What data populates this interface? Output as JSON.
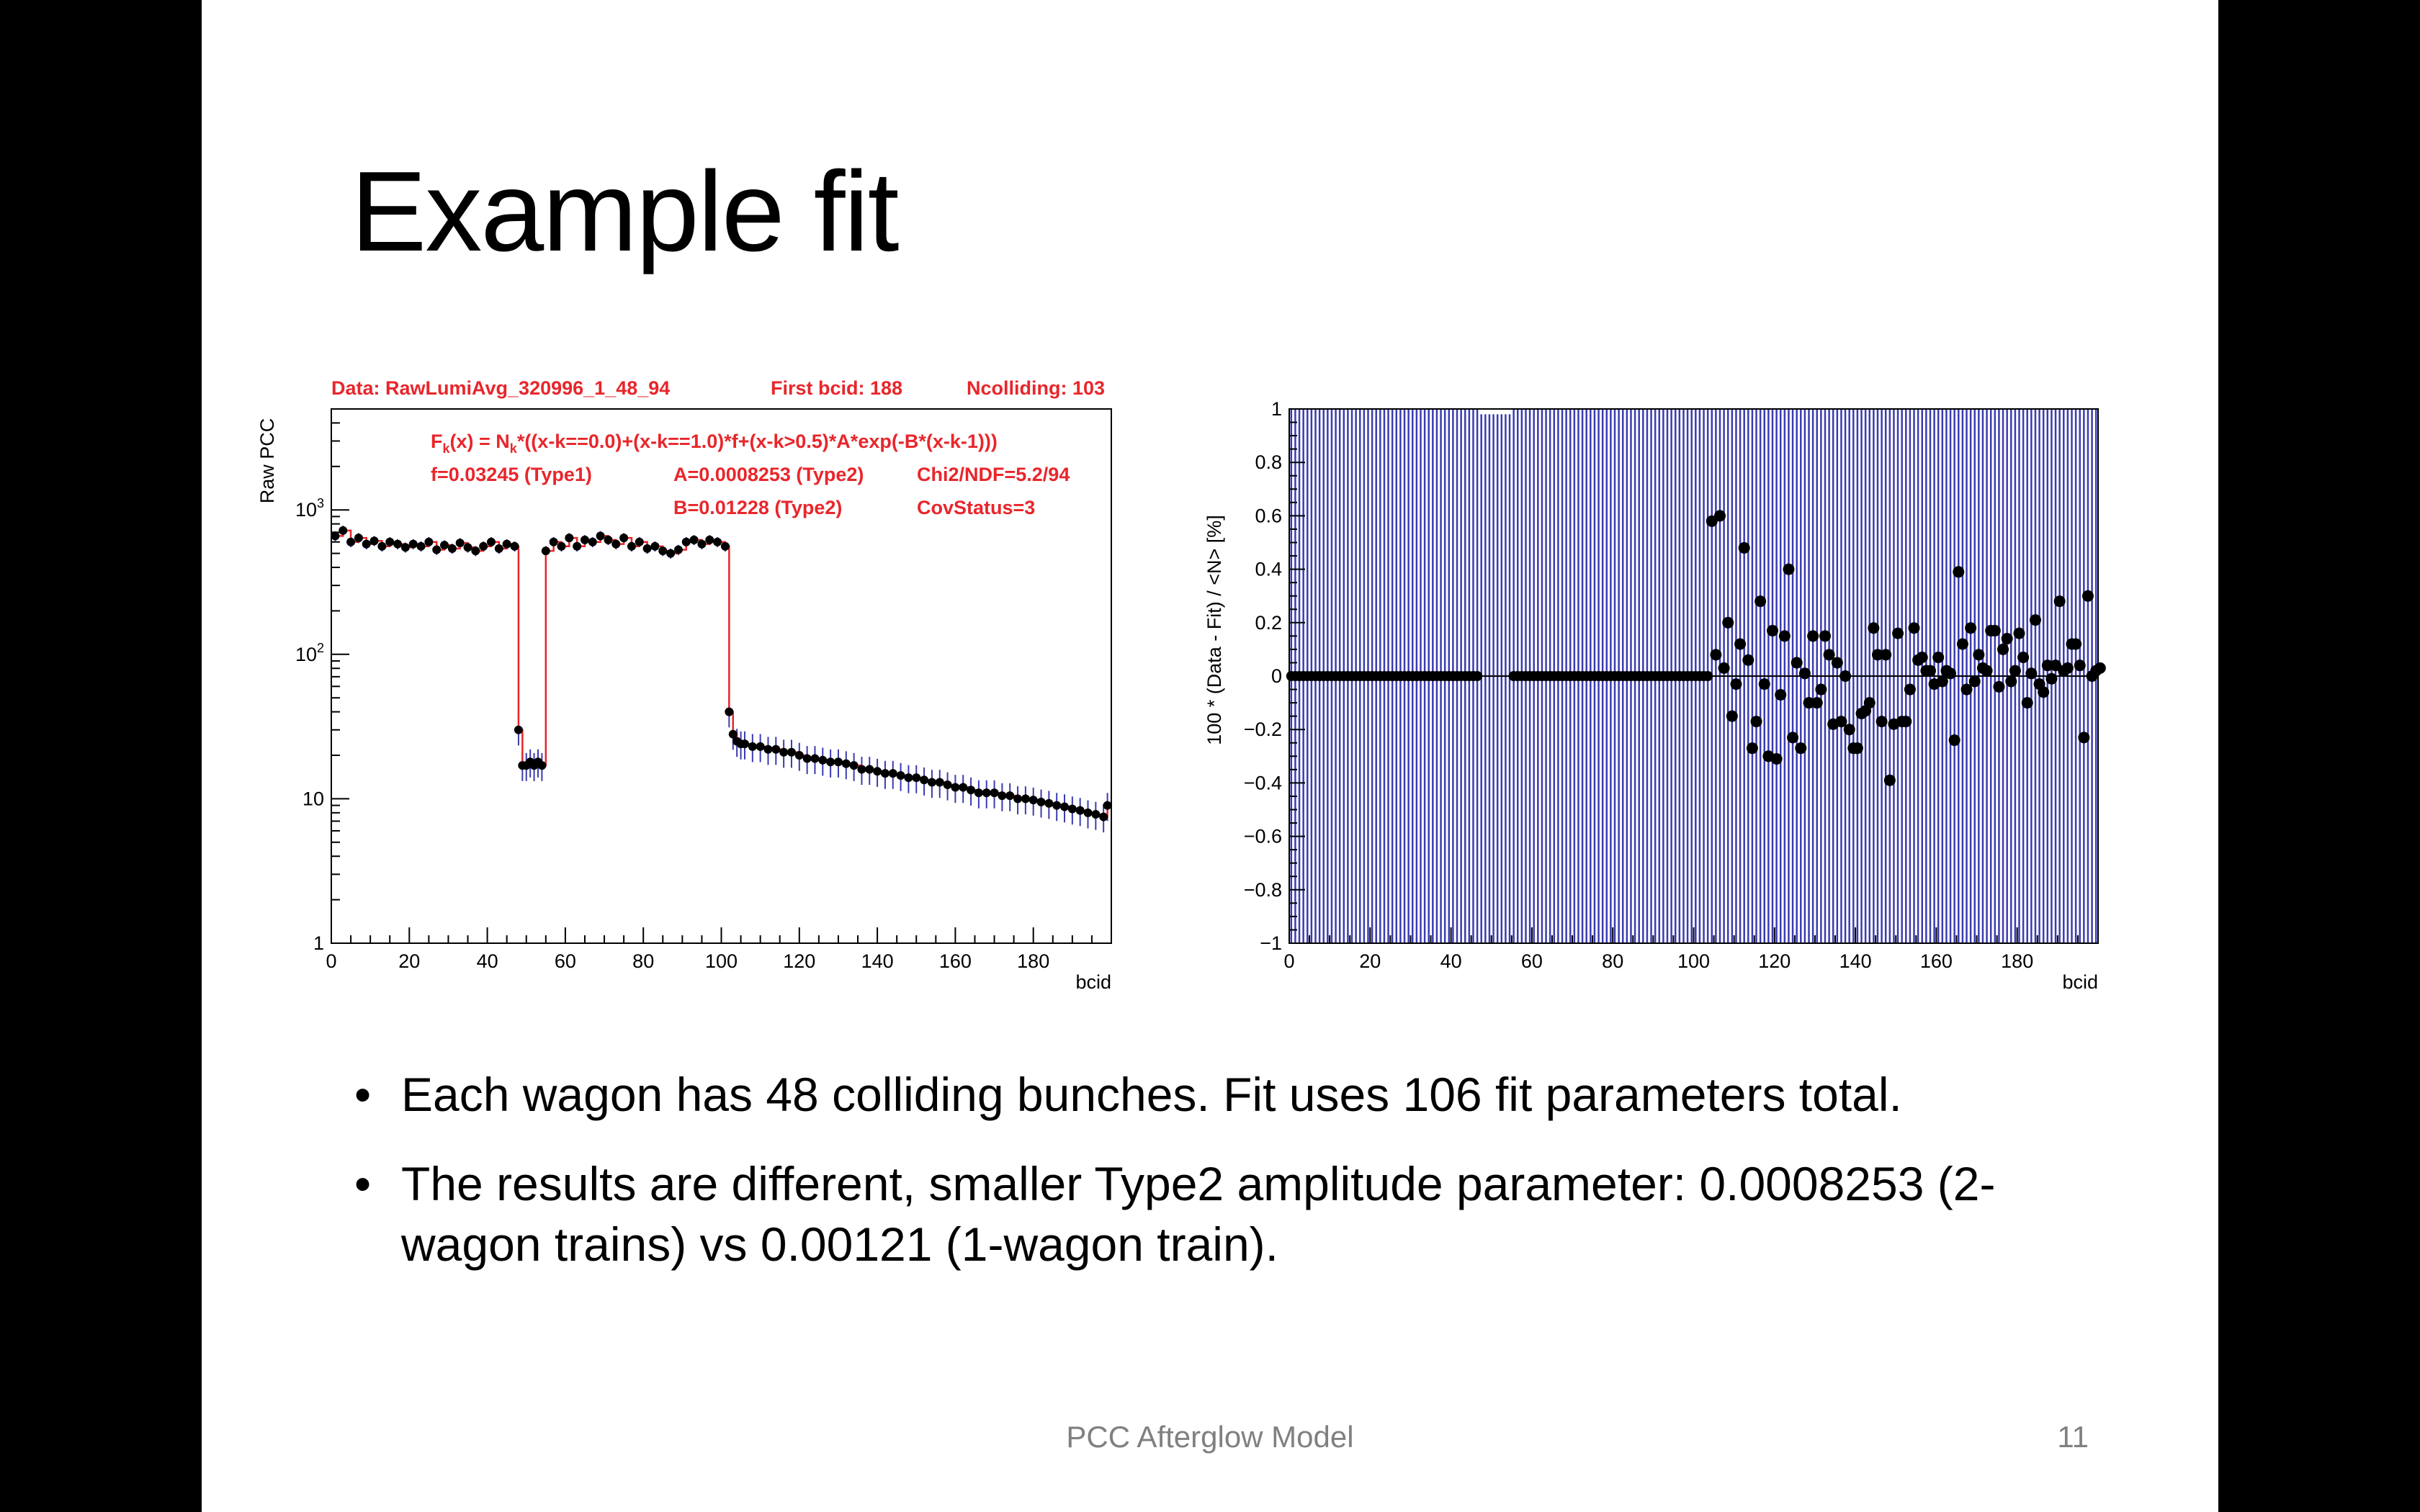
{
  "slide": {
    "title": "Example fit",
    "bullets": [
      "Each wagon has 48 colliding bunches. Fit uses 106 fit parameters total.",
      "The results are different, smaller Type2 amplitude parameter: 0.0008253 (2-wagon trains) vs  0.00121 (1-wagon train)."
    ],
    "footer": "PCC Afterglow Model",
    "page_number": "11"
  },
  "chart_data": [
    {
      "type": "scatter",
      "ylabel": "Raw PCC",
      "xlabel": "bcid",
      "xlim": [
        0,
        200
      ],
      "ylim": [
        1,
        5000
      ],
      "yscale": "log",
      "x_ticks": [
        "0",
        "20",
        "40",
        "60",
        "80",
        "100",
        "120",
        "140",
        "160",
        "180"
      ],
      "y_ticks": [
        "1",
        "10",
        "10^2",
        "10^3"
      ],
      "header": {
        "data": "Data: RawLumiAvg_320996_1_48_94",
        "first_bcid": "First bcid: 188",
        "ncolliding": "Ncolliding: 103"
      },
      "formula": {
        "lead": "F",
        "lead_sub": "k",
        "mid": "(x) = N",
        "mid_sub": "k",
        "tail": "*((x-k==0.0)+(x-k==1.0)*f+(x-k>0.5)*A*exp(-B*(x-k-1)))"
      },
      "params": {
        "f": "f=0.03245 (Type1)",
        "A": "A=0.0008253 (Type2)",
        "chi2": "Chi2/NDF=5.2/94",
        "B": "B=0.01228 (Type2)",
        "cov": "CovStatus=3"
      },
      "colors": {
        "data": "#000000",
        "fit": "#e8262b",
        "errors": "#3b3bb0"
      },
      "series": [
        {
          "x": [
            1,
            3,
            5,
            7,
            9,
            11,
            13,
            15,
            17,
            19,
            21,
            23,
            25,
            27,
            29,
            31,
            33,
            35,
            37,
            39,
            41,
            43,
            45,
            47,
            48,
            49,
            50,
            51,
            52,
            53,
            54,
            55,
            57,
            59,
            61,
            63,
            65,
            67,
            69,
            71,
            73,
            75,
            77,
            79,
            81,
            83,
            85,
            87,
            89,
            91,
            93,
            95,
            97,
            99,
            101,
            102,
            103,
            104,
            105,
            106,
            108,
            110,
            112,
            114,
            116,
            118,
            120,
            122,
            124,
            126,
            128,
            130,
            132,
            134,
            136,
            138,
            140,
            142,
            144,
            146,
            148,
            150,
            152,
            154,
            156,
            158,
            160,
            162,
            164,
            166,
            168,
            170,
            172,
            174,
            176,
            178,
            180,
            182,
            184,
            186,
            188,
            190,
            192,
            194,
            196,
            198,
            199
          ],
          "y": [
            660,
            720,
            600,
            640,
            580,
            610,
            560,
            600,
            580,
            550,
            580,
            560,
            600,
            530,
            570,
            540,
            590,
            550,
            520,
            560,
            600,
            540,
            580,
            560,
            30,
            17,
            17,
            18,
            17,
            18,
            17,
            520,
            600,
            560,
            640,
            560,
            620,
            600,
            660,
            620,
            580,
            640,
            560,
            600,
            540,
            560,
            520,
            500,
            530,
            600,
            620,
            580,
            620,
            600,
            560,
            40,
            28,
            25,
            24,
            24,
            23,
            23,
            22,
            22,
            21,
            21,
            20,
            19,
            19,
            18.5,
            18,
            18,
            17.5,
            17,
            16,
            16,
            15.5,
            15,
            15,
            14.5,
            14,
            14,
            13.5,
            13,
            13,
            12.5,
            12,
            12,
            11.5,
            11,
            11,
            11,
            10.5,
            10.5,
            10,
            10,
            9.8,
            9.5,
            9.3,
            9,
            8.8,
            8.5,
            8.3,
            8,
            7.8,
            7.5,
            9
          ]
        }
      ]
    },
    {
      "type": "scatter",
      "ylabel": "100 * (Data - Fit) / <N>  [%]",
      "xlabel": "bcid",
      "xlim": [
        0,
        200
      ],
      "ylim": [
        -1,
        1
      ],
      "x_ticks": [
        "0",
        "20",
        "40",
        "60",
        "80",
        "100",
        "120",
        "140",
        "160",
        "180"
      ],
      "y_ticks": [
        "−1",
        "−0.8",
        "−0.6",
        "−0.4",
        "−0.2",
        "0",
        "0.2",
        "0.4",
        "0.6",
        "0.8",
        "1"
      ],
      "colors": {
        "data": "#000000",
        "errors": "#3b3bb0",
        "zero_line": "#000000"
      },
      "series": [
        {
          "x": [
            104,
            105,
            106,
            107,
            108,
            109,
            110,
            111,
            112,
            113,
            114,
            115,
            116,
            117,
            118,
            119,
            120,
            121,
            122,
            123,
            124,
            125,
            126,
            127,
            128,
            129,
            130,
            131,
            132,
            133,
            134,
            135,
            136,
            137,
            138,
            139,
            140,
            141,
            142,
            143,
            144,
            145,
            146,
            147,
            148,
            149,
            150,
            151,
            152,
            153,
            154,
            155,
            156,
            157,
            158,
            159,
            160,
            161,
            162,
            163,
            164,
            165,
            166,
            167,
            168,
            169,
            170,
            171,
            172,
            173,
            174,
            175,
            176,
            177,
            178,
            179,
            180,
            181,
            182,
            183,
            184,
            185,
            186,
            187,
            188,
            189,
            190,
            191,
            192,
            193,
            194,
            195,
            196,
            197,
            198,
            199,
            200
          ],
          "y": [
            0.58,
            0.08,
            0.6,
            0.03,
            0.2,
            -0.15,
            -0.03,
            0.12,
            0.48,
            0.06,
            -0.27,
            -0.17,
            0.28,
            -0.03,
            -0.3,
            0.17,
            -0.31,
            -0.07,
            0.15,
            0.4,
            -0.23,
            0.05,
            -0.27,
            0.01,
            -0.1,
            0.15,
            -0.1,
            -0.05,
            0.15,
            0.08,
            -0.18,
            0.05,
            -0.17,
            0,
            -0.2,
            -0.27,
            -0.27,
            -0.14,
            -0.13,
            -0.1,
            0.18,
            0.08,
            -0.17,
            0.08,
            -0.39,
            -0.18,
            0.16,
            -0.17,
            -0.17,
            -0.05,
            0.18,
            0.06,
            0.07,
            0.02,
            0.02,
            -0.03,
            0.07,
            -0.02,
            0.02,
            0.01,
            -0.24,
            0.39,
            0.12,
            -0.05,
            0.18,
            -0.02,
            0.08,
            0.03,
            0.02,
            0.17,
            0.17,
            -0.04,
            0.1,
            0.14,
            -0.02,
            0.02,
            0.16,
            0.07,
            -0.1,
            0.01,
            0.21,
            -0.03,
            -0.06,
            0.04,
            -0.01,
            0.04,
            0.28,
            0.02,
            0.03,
            0.12,
            0.12,
            0.04,
            -0.23,
            0.3,
            0,
            0.02,
            0.03
          ],
          "zero_bcids_end": 103
        }
      ]
    }
  ]
}
